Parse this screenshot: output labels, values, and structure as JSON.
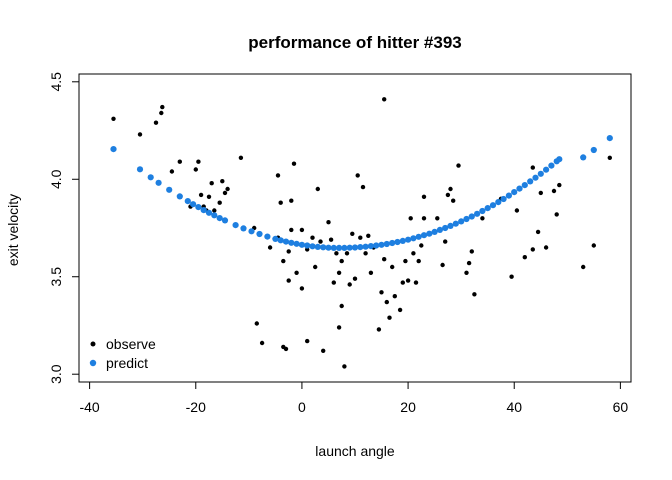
{
  "chart_data": {
    "type": "scatter",
    "title": "performance of hitter #393",
    "xlabel": "launch angle",
    "ylabel": "exit velocity",
    "xlim": [
      -42,
      62
    ],
    "ylim": [
      2.96,
      4.54
    ],
    "x_ticks": [
      -40,
      -20,
      0,
      20,
      40,
      60
    ],
    "y_ticks": [
      3.0,
      3.5,
      4.0,
      4.5
    ],
    "grid": false,
    "legend_position": "bottom-left",
    "series": [
      {
        "name": "observe",
        "color": "#000000",
        "points": [
          [
            -35.5,
            4.31
          ],
          [
            -30.5,
            4.23
          ],
          [
            -27.5,
            4.29
          ],
          [
            -26.5,
            4.34
          ],
          [
            -26.3,
            4.37
          ],
          [
            -24.5,
            4.04
          ],
          [
            -23,
            4.09
          ],
          [
            -21.5,
            3.89
          ],
          [
            -21,
            3.86
          ],
          [
            -20,
            4.05
          ],
          [
            -19.5,
            4.09
          ],
          [
            -19,
            3.92
          ],
          [
            -18.5,
            3.86
          ],
          [
            -18,
            3.84
          ],
          [
            -17.5,
            3.91
          ],
          [
            -17,
            3.98
          ],
          [
            -16.5,
            3.84
          ],
          [
            -15.5,
            3.88
          ],
          [
            -15,
            3.99
          ],
          [
            -14.5,
            3.93
          ],
          [
            -14,
            3.95
          ],
          [
            -11.5,
            4.11
          ],
          [
            -9,
            3.75
          ],
          [
            -8.5,
            3.26
          ],
          [
            -7.5,
            3.16
          ],
          [
            -6,
            3.65
          ],
          [
            -4.5,
            3.7
          ],
          [
            -4.5,
            4.02
          ],
          [
            -4,
            3.88
          ],
          [
            -3.5,
            3.58
          ],
          [
            -3.5,
            3.14
          ],
          [
            -3,
            3.13
          ],
          [
            -2.5,
            3.48
          ],
          [
            -2.5,
            3.63
          ],
          [
            -2,
            3.89
          ],
          [
            -2,
            3.74
          ],
          [
            -1.5,
            4.08
          ],
          [
            -1,
            3.52
          ],
          [
            0,
            3.74
          ],
          [
            0,
            3.44
          ],
          [
            1,
            3.17
          ],
          [
            1,
            3.64
          ],
          [
            2,
            3.7
          ],
          [
            2.5,
            3.55
          ],
          [
            3,
            3.95
          ],
          [
            3.5,
            3.68
          ],
          [
            4,
            3.12
          ],
          [
            5,
            3.78
          ],
          [
            5.5,
            3.69
          ],
          [
            6,
            3.47
          ],
          [
            6.5,
            3.62
          ],
          [
            7,
            3.52
          ],
          [
            7,
            3.24
          ],
          [
            7.5,
            3.58
          ],
          [
            7.5,
            3.35
          ],
          [
            8,
            3.04
          ],
          [
            8.5,
            3.62
          ],
          [
            9,
            3.46
          ],
          [
            9.5,
            3.72
          ],
          [
            10,
            3.49
          ],
          [
            10.5,
            4.02
          ],
          [
            11,
            3.7
          ],
          [
            11.5,
            3.96
          ],
          [
            12,
            3.62
          ],
          [
            12.5,
            3.71
          ],
          [
            13,
            3.52
          ],
          [
            13.5,
            3.65
          ],
          [
            14.5,
            3.23
          ],
          [
            15,
            3.42
          ],
          [
            15.5,
            4.41
          ],
          [
            15.5,
            3.59
          ],
          [
            16,
            3.37
          ],
          [
            16.5,
            3.29
          ],
          [
            17,
            3.55
          ],
          [
            17.5,
            3.4
          ],
          [
            18.5,
            3.33
          ],
          [
            19,
            3.47
          ],
          [
            19.5,
            3.58
          ],
          [
            20,
            3.48
          ],
          [
            20.5,
            3.8
          ],
          [
            21,
            3.62
          ],
          [
            21.5,
            3.47
          ],
          [
            22,
            3.58
          ],
          [
            22.5,
            3.66
          ],
          [
            23,
            3.91
          ],
          [
            23,
            3.8
          ],
          [
            25.5,
            3.8
          ],
          [
            26.5,
            3.56
          ],
          [
            27,
            3.68
          ],
          [
            27.5,
            3.92
          ],
          [
            28,
            3.95
          ],
          [
            28.5,
            3.89
          ],
          [
            29.5,
            4.07
          ],
          [
            31,
            3.52
          ],
          [
            31.5,
            3.57
          ],
          [
            32,
            3.63
          ],
          [
            32.5,
            3.41
          ],
          [
            34,
            3.8
          ],
          [
            37.5,
            3.9
          ],
          [
            39.5,
            3.5
          ],
          [
            40.5,
            3.84
          ],
          [
            42,
            3.6
          ],
          [
            43.5,
            3.64
          ],
          [
            43.5,
            4.06
          ],
          [
            44.5,
            3.73
          ],
          [
            45,
            3.93
          ],
          [
            46,
            3.65
          ],
          [
            47.5,
            3.94
          ],
          [
            48,
            3.82
          ],
          [
            48.5,
            3.97
          ],
          [
            53,
            3.55
          ],
          [
            55,
            3.66
          ],
          [
            58,
            4.11
          ]
        ]
      },
      {
        "name": "predict",
        "color": "#1e7fe0",
        "points": [
          [
            -35.5,
            4.155
          ],
          [
            -30.5,
            4.051
          ],
          [
            -28.5,
            4.01
          ],
          [
            -27,
            3.982
          ],
          [
            -25,
            3.946
          ],
          [
            -23,
            3.912
          ],
          [
            -21.5,
            3.888
          ],
          [
            -20.5,
            3.872
          ],
          [
            -19.5,
            3.857
          ],
          [
            -18.5,
            3.842
          ],
          [
            -17.5,
            3.828
          ],
          [
            -16.5,
            3.815
          ],
          [
            -15.5,
            3.801
          ],
          [
            -14.5,
            3.789
          ],
          [
            -12.5,
            3.765
          ],
          [
            -11,
            3.748
          ],
          [
            -9.5,
            3.733
          ],
          [
            -8,
            3.719
          ],
          [
            -6.5,
            3.706
          ],
          [
            -5,
            3.694
          ],
          [
            -4,
            3.687
          ],
          [
            -3,
            3.68
          ],
          [
            -2,
            3.674
          ],
          [
            -1,
            3.669
          ],
          [
            0,
            3.664
          ],
          [
            1,
            3.66
          ],
          [
            2,
            3.656
          ],
          [
            3,
            3.653
          ],
          [
            4,
            3.651
          ],
          [
            5,
            3.649
          ],
          [
            6,
            3.648
          ],
          [
            7,
            3.648
          ],
          [
            8,
            3.648
          ],
          [
            9,
            3.649
          ],
          [
            10,
            3.65
          ],
          [
            11,
            3.652
          ],
          [
            12,
            3.654
          ],
          [
            13,
            3.657
          ],
          [
            14,
            3.66
          ],
          [
            15,
            3.664
          ],
          [
            16,
            3.668
          ],
          [
            17,
            3.673
          ],
          [
            18,
            3.678
          ],
          [
            19,
            3.684
          ],
          [
            20,
            3.69
          ],
          [
            21,
            3.697
          ],
          [
            22,
            3.705
          ],
          [
            23,
            3.713
          ],
          [
            24,
            3.721
          ],
          [
            25,
            3.73
          ],
          [
            26,
            3.74
          ],
          [
            27,
            3.75
          ],
          [
            28,
            3.761
          ],
          [
            29,
            3.772
          ],
          [
            30,
            3.784
          ],
          [
            31,
            3.796
          ],
          [
            32,
            3.809
          ],
          [
            33,
            3.823
          ],
          [
            34,
            3.837
          ],
          [
            35,
            3.852
          ],
          [
            36,
            3.867
          ],
          [
            37,
            3.883
          ],
          [
            38,
            3.899
          ],
          [
            39,
            3.916
          ],
          [
            40,
            3.934
          ],
          [
            41,
            3.952
          ],
          [
            42,
            3.97
          ],
          [
            43,
            3.989
          ],
          [
            44,
            4.008
          ],
          [
            45,
            4.028
          ],
          [
            46,
            4.049
          ],
          [
            47,
            4.07
          ],
          [
            48,
            4.092
          ],
          [
            48.5,
            4.103
          ],
          [
            53,
            4.112
          ],
          [
            55,
            4.15
          ],
          [
            58,
            4.211
          ]
        ]
      }
    ]
  }
}
